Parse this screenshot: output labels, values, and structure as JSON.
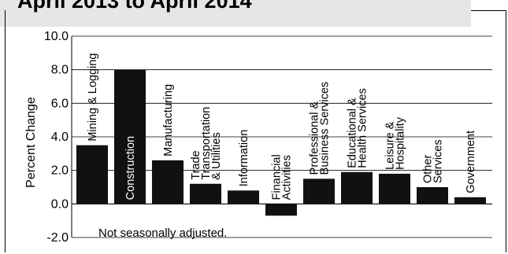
{
  "title": "April 2013 to April 2014",
  "note": "Not seasonally adjusted.",
  "chart_data": {
    "type": "bar",
    "ylabel": "Percent Change",
    "xlabel": "",
    "ylim": [
      -2.0,
      10.0
    ],
    "yticks": [
      "-2.0",
      "0.0",
      "2.0",
      "4.0",
      "6.0",
      "8.0",
      "10.0"
    ],
    "grid": true,
    "categories": [
      "Mining & Logging",
      "Construction",
      "Manufacturing",
      "Trade, Transportation & Utilities",
      "Information",
      "Financial Activities",
      "Professional & Business Services",
      "Educational & Health Services",
      "Leisure & Hospitality",
      "Other Services",
      "Government"
    ],
    "label_lines": [
      [
        "Mining & Logging"
      ],
      [
        "Construction"
      ],
      [
        "Manufacturing"
      ],
      [
        "Trade",
        "Transportation",
        "& Utilities"
      ],
      [
        "Information"
      ],
      [
        "Financial",
        "Activities"
      ],
      [
        "Professional &",
        "Business Services"
      ],
      [
        "Educational &",
        "Health Services"
      ],
      [
        "Leisure &",
        "Hospitality"
      ],
      [
        "Other",
        "Services"
      ],
      [
        "Government"
      ]
    ],
    "values": [
      3.5,
      8.0,
      2.6,
      1.2,
      0.8,
      -0.7,
      1.5,
      1.9,
      1.8,
      1.0,
      0.4
    ],
    "bar_color": "#111111",
    "label_color_inside": "#ffffff",
    "label_color_outside": "#000000"
  }
}
